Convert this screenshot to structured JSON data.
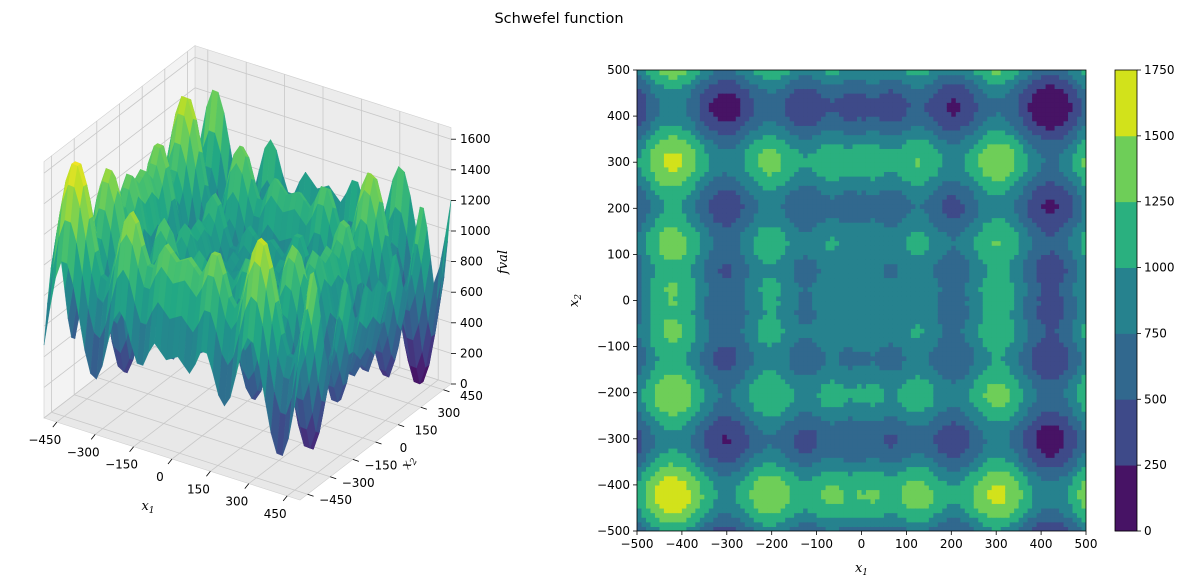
{
  "figure": {
    "title": "Schwefel function"
  },
  "chart_data": [
    {
      "type": "surface",
      "function": "schwefel",
      "xlabel": "x1",
      "ylabel": "x2",
      "zlabel": "fval",
      "xlim": [
        -500,
        500
      ],
      "ylim": [
        -500,
        500
      ],
      "zlim": [
        0,
        1676
      ],
      "x_ticks": [
        "−450",
        "−300",
        "−150",
        "0",
        "150",
        "300",
        "450"
      ],
      "y_ticks": [
        "−450",
        "−300",
        "−150",
        "0",
        "150",
        "300",
        "450"
      ],
      "z_ticks": [
        "0",
        "200",
        "400",
        "600",
        "800",
        "1000",
        "1200",
        "1400",
        "1600"
      ],
      "colormap": "viridis",
      "grid": true
    },
    {
      "type": "contourf",
      "function": "schwefel",
      "xlabel": "x1",
      "ylabel": "x2",
      "xlim": [
        -500,
        500
      ],
      "ylim": [
        -500,
        500
      ],
      "x_ticks": [
        "−500",
        "−400",
        "−300",
        "−200",
        "−100",
        "0",
        "100",
        "200",
        "300",
        "400",
        "500"
      ],
      "y_ticks": [
        "−500",
        "−400",
        "−300",
        "−200",
        "−100",
        "0",
        "100",
        "200",
        "300",
        "400",
        "500"
      ],
      "levels": [
        0,
        250,
        500,
        750,
        1000,
        1250,
        1500,
        1750
      ],
      "level_colors": [
        "#471365",
        "#3e4a89",
        "#31688e",
        "#26828e",
        "#2ab07f",
        "#6ece58",
        "#d2e21b"
      ],
      "colorbar_ticks": [
        "0",
        "250",
        "500",
        "750",
        "1000",
        "1250",
        "1500",
        "1750"
      ],
      "colormap": "viridis"
    }
  ]
}
